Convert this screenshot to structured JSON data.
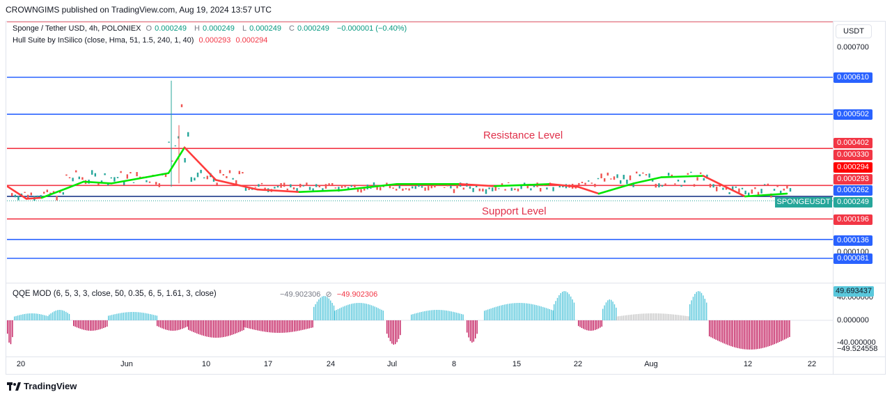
{
  "header": {
    "published_by": "CROWNGIMS published on TradingView.com, Aug 19, 2024 13:57 UTC"
  },
  "legend": {
    "symbol": "Sponge / Tether USD, 4h, POLONIEX",
    "o_label": "O",
    "o_value": "0.000249",
    "h_label": "H",
    "h_value": "0.000249",
    "l_label": "L",
    "l_value": "0.000249",
    "c_label": "C",
    "c_value": "0.000249",
    "change": "−0.000001 (−0.40%)",
    "indicator": "Hull Suite by InSilico (close, Hma, 51, 1.5, 240, 1, 40)",
    "ind_value1": "0.000293",
    "ind_value2": "0.000294"
  },
  "annotations": {
    "resistance": "Resistance Level",
    "support": "Support Level"
  },
  "price_axis": {
    "currency": "USDT",
    "top_value": "0.000700",
    "hidden_value": "0.000100",
    "symbol_tag": "SPONGEUSDT",
    "tags": [
      {
        "value": "0.000610",
        "color": "#2962ff"
      },
      {
        "value": "0.000502",
        "color": "#2962ff"
      },
      {
        "value": "0.000402",
        "color": "#f23645"
      },
      {
        "value": "0.000330",
        "color": "#f23645"
      },
      {
        "value": "0.000294",
        "color": "#ff0000"
      },
      {
        "value": "0.000293",
        "color": "#f23645"
      },
      {
        "value": "0.000262",
        "color": "#2962ff"
      },
      {
        "value": "0.000249",
        "color": "#26a69a"
      },
      {
        "value": "0.000196",
        "color": "#f23645"
      },
      {
        "value": "0.000136",
        "color": "#2962ff"
      },
      {
        "value": "0.000081",
        "color": "#2962ff"
      }
    ]
  },
  "qqe": {
    "label": "QQE MOD (6, 5, 3, 3, close, 50, 0.35, 6, 5, 1.61, 3, close)",
    "v1": "−49.902306",
    "v2": "−49.902306",
    "tag_value": "49.693437",
    "axis_top": "40.000000",
    "axis_mid": "0.000000",
    "axis_low": "-40.000000",
    "axis_bottom": "−49.524558"
  },
  "time_axis": [
    "20",
    "Jun",
    "10",
    "17",
    "24",
    "Jul",
    "8",
    "15",
    "22",
    "Aug",
    "12",
    "22"
  ],
  "brand": "TradingView",
  "colors": {
    "resistance": "#f23645",
    "blue_line": "#2962ff",
    "hull_up": "#00e600",
    "hull_down": "#ff3b3b",
    "qqe_up": "#5ac8dc",
    "qqe_down": "#c2185b",
    "qqe_neutral": "#c8c8c8"
  }
}
